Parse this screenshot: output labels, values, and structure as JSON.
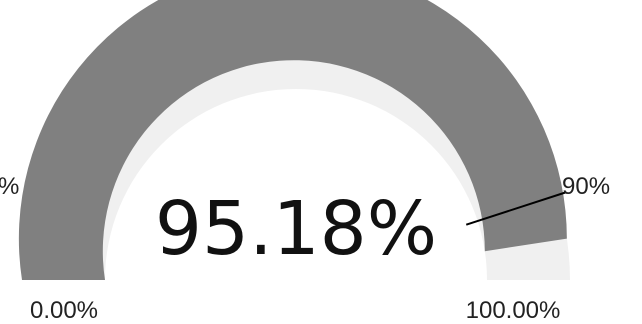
{
  "chart_data": {
    "type": "gauge",
    "value": 95.18,
    "value_label": "95.18%",
    "min": 0,
    "max": 100,
    "min_label": "0.00%",
    "max_label": "100.00%",
    "target": 90,
    "target_label": "90%",
    "left_edge_label": "%",
    "colors": {
      "fill": "#808080",
      "track": "#f0f0f0",
      "target_line": "#000000"
    }
  }
}
